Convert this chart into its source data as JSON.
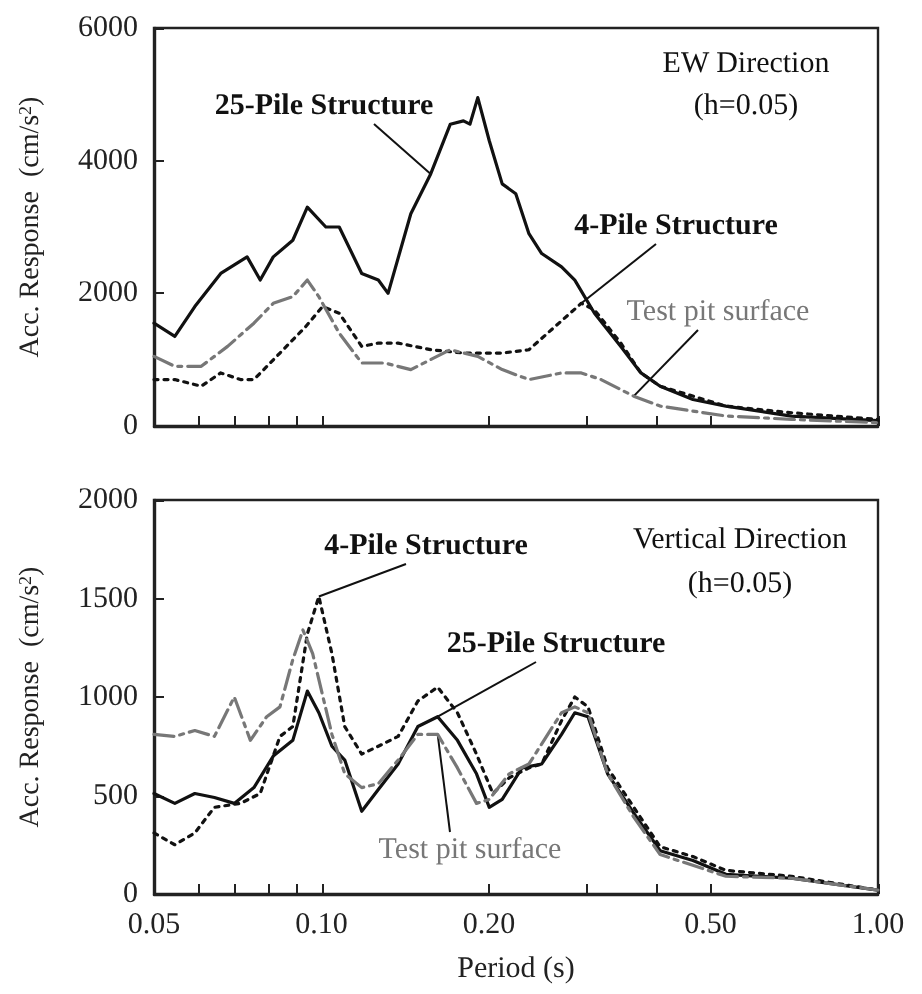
{
  "chart_data": [
    {
      "type": "line",
      "ylabel": "Acc. Response  (cm/s$^{2}$)",
      "annotations": [
        "EW Direction",
        "(h=0.05)"
      ],
      "xlim": [
        0.05,
        1.0
      ],
      "log": "x",
      "ylim": [
        0,
        6000
      ],
      "yticks": [
        0,
        2000,
        4000,
        6000
      ],
      "xticks": [
        {
          "value": 0.05,
          "label": null
        },
        {
          "value": 0.06,
          "label": null
        },
        {
          "value": 0.07,
          "label": null
        },
        {
          "value": 0.08,
          "label": null
        },
        {
          "value": 0.09,
          "label": null
        },
        {
          "value": 0.1,
          "label": null
        },
        {
          "value": 0.2,
          "label": null
        },
        {
          "value": 0.3,
          "label": null
        },
        {
          "value": 0.4,
          "label": null
        },
        {
          "value": 0.5,
          "label": null
        },
        {
          "value": 1.0,
          "label": null
        }
      ],
      "tick_labels": "y",
      "grid": false,
      "legend": false,
      "marker": "none",
      "series": [
        {
          "name": "25-Pile Structure",
          "color": "#111111",
          "line_style": "solid",
          "x": [
            0.05,
            0.0545,
            0.0592,
            0.0659,
            0.0735,
            0.0776,
            0.0819,
            0.0888,
            0.0943,
            0.1018,
            0.1076,
            0.1181,
            0.1265,
            0.1317,
            0.1447,
            0.1571,
            0.1704,
            0.1799,
            0.1848,
            0.1909,
            0.2002,
            0.2112,
            0.2234,
            0.2359,
            0.2487,
            0.27,
            0.2852,
            0.3094,
            0.345,
            0.375,
            0.406,
            0.465,
            0.533,
            0.699,
            1.0
          ],
          "values": [
            1550,
            1350,
            1800,
            2300,
            2550,
            2200,
            2550,
            2800,
            3300,
            3000,
            3000,
            2300,
            2200,
            2000,
            3200,
            3800,
            4550,
            4600,
            4550,
            4950,
            4300,
            3650,
            3500,
            2900,
            2600,
            2400,
            2200,
            1700,
            1200,
            800,
            600,
            400,
            300,
            150,
            80
          ]
        },
        {
          "name": "4-Pile Structure",
          "color": "#111111",
          "line_style": "dotted",
          "x": [
            0.05,
            0.0545,
            0.0608,
            0.0659,
            0.0715,
            0.0756,
            0.0842,
            0.0937,
            0.1004,
            0.1076,
            0.1181,
            0.1265,
            0.1373,
            0.1571,
            0.1799,
            0.2112,
            0.2359,
            0.2629,
            0.293,
            0.3094,
            0.345,
            0.375,
            0.406,
            0.533,
            0.699,
            1.0
          ],
          "values": [
            700,
            700,
            600,
            800,
            700,
            700,
            1100,
            1500,
            1800,
            1700,
            1200,
            1250,
            1250,
            1150,
            1100,
            1100,
            1150,
            1500,
            1850,
            1750,
            1250,
            800,
            600,
            300,
            200,
            100
          ]
        },
        {
          "name": "Test pit surface",
          "color": "#777777",
          "line_style": "dashed",
          "x": [
            0.05,
            0.0545,
            0.0608,
            0.0678,
            0.0756,
            0.0819,
            0.0888,
            0.0943,
            0.0989,
            0.1076,
            0.1181,
            0.1299,
            0.1447,
            0.1704,
            0.1909,
            0.2112,
            0.2359,
            0.27,
            0.293,
            0.318,
            0.364,
            0.406,
            0.533,
            0.699,
            1.0
          ],
          "values": [
            1050,
            900,
            900,
            1200,
            1550,
            1850,
            1950,
            2200,
            1950,
            1400,
            950,
            950,
            850,
            1150,
            1050,
            850,
            700,
            800,
            800,
            700,
            450,
            300,
            150,
            100,
            50
          ]
        }
      ]
    },
    {
      "type": "line",
      "xlabel": "Period (s)",
      "ylabel": "Acc. Response  (cm/s$^{2}$)",
      "annotations": [
        "Vertical Direction",
        "(h=0.05)"
      ],
      "xlim": [
        0.05,
        1.0
      ],
      "log": "x",
      "ylim": [
        0,
        2000
      ],
      "yticks": [
        0,
        500,
        1000,
        1500,
        2000
      ],
      "xticks": [
        {
          "value": 0.05,
          "label": "0.05"
        },
        {
          "value": 0.06,
          "label": null
        },
        {
          "value": 0.07,
          "label": null
        },
        {
          "value": 0.08,
          "label": null
        },
        {
          "value": 0.09,
          "label": null
        },
        {
          "value": 0.1,
          "label": "0.10"
        },
        {
          "value": 0.2,
          "label": "0.20"
        },
        {
          "value": 0.3,
          "label": null
        },
        {
          "value": 0.4,
          "label": null
        },
        {
          "value": 0.5,
          "label": "0.50"
        },
        {
          "value": 1.0,
          "label": "1.00"
        }
      ],
      "grid": false,
      "legend": false,
      "marker": "none",
      "series": [
        {
          "name": "25-Pile Structure",
          "color": "#111111",
          "line_style": "solid",
          "x": [
            0.05,
            0.0545,
            0.0592,
            0.0642,
            0.0697,
            0.0756,
            0.0819,
            0.0888,
            0.0943,
            0.0989,
            0.1044,
            0.1101,
            0.1181,
            0.1265,
            0.1373,
            0.149,
            0.1617,
            0.1755,
            0.1899,
            0.2002,
            0.2112,
            0.2292,
            0.2487,
            0.27,
            0.2852,
            0.3012,
            0.3267,
            0.364,
            0.406,
            0.465,
            0.533,
            0.699,
            1.0
          ],
          "values": [
            510,
            460,
            510,
            490,
            460,
            540,
            700,
            780,
            1030,
            920,
            750,
            680,
            420,
            530,
            660,
            850,
            900,
            780,
            610,
            440,
            480,
            640,
            660,
            810,
            920,
            900,
            610,
            410,
            220,
            170,
            100,
            80,
            20
          ]
        },
        {
          "name": "4-Pile Structure",
          "color": "#111111",
          "line_style": "dotted",
          "x": [
            0.05,
            0.0545,
            0.0592,
            0.0642,
            0.0715,
            0.0776,
            0.0842,
            0.0888,
            0.0943,
            0.0989,
            0.1044,
            0.1101,
            0.1181,
            0.1265,
            0.1373,
            0.149,
            0.1617,
            0.1755,
            0.1899,
            0.2032,
            0.2174,
            0.2359,
            0.2487,
            0.27,
            0.2852,
            0.3012,
            0.3267,
            0.364,
            0.406,
            0.465,
            0.533,
            0.699,
            1.0
          ],
          "values": [
            310,
            250,
            310,
            440,
            460,
            510,
            800,
            850,
            1320,
            1510,
            1220,
            850,
            710,
            750,
            800,
            980,
            1050,
            920,
            710,
            510,
            590,
            640,
            660,
            880,
            1000,
            950,
            640,
            440,
            240,
            190,
            120,
            90,
            20
          ]
        },
        {
          "name": "Test pit surface",
          "color": "#777777",
          "line_style": "dashed",
          "x": [
            0.05,
            0.0545,
            0.0592,
            0.0642,
            0.0697,
            0.0745,
            0.0797,
            0.0842,
            0.0888,
            0.0926,
            0.0964,
            0.1044,
            0.1101,
            0.1181,
            0.1265,
            0.1373,
            0.149,
            0.1617,
            0.1755,
            0.1899,
            0.2002,
            0.2174,
            0.2359,
            0.27,
            0.2852,
            0.3012,
            0.3267,
            0.364,
            0.406,
            0.533,
            0.699,
            1.0
          ],
          "values": [
            810,
            800,
            830,
            800,
            1000,
            780,
            900,
            950,
            1190,
            1340,
            1220,
            810,
            610,
            540,
            560,
            680,
            810,
            810,
            640,
            460,
            480,
            610,
            660,
            920,
            950,
            920,
            610,
            390,
            200,
            90,
            80,
            20
          ]
        }
      ]
    }
  ]
}
